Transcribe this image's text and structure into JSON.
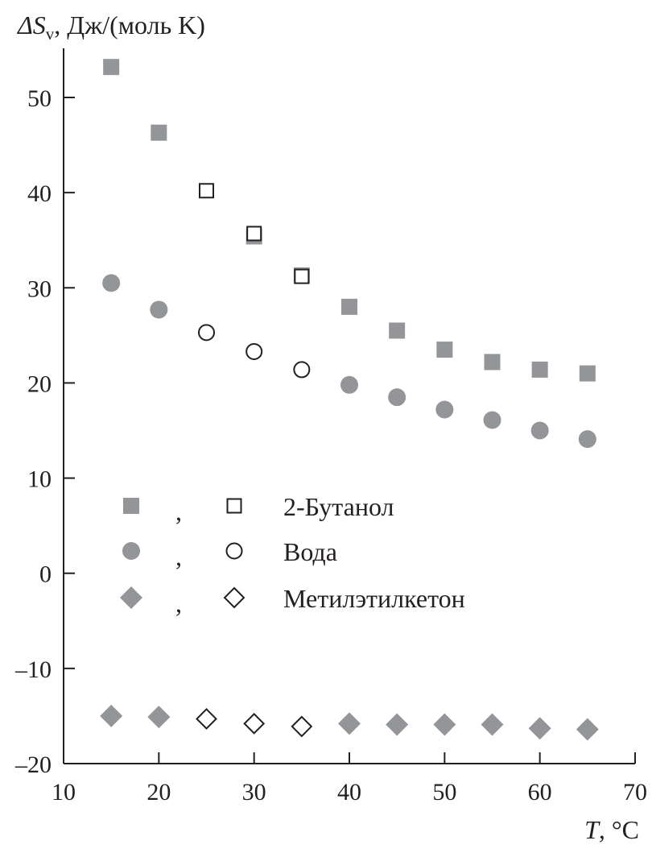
{
  "chart_data": {
    "type": "scatter",
    "ylabel_symbol": "ΔS",
    "ylabel_subscript": "v",
    "ylabel_unit": ", Дж/(моль K)",
    "xlabel_symbol": "T",
    "xlabel_unit": ", °C",
    "xlim": [
      10,
      70
    ],
    "ylim": [
      -20,
      55
    ],
    "xticks": [
      10,
      20,
      30,
      40,
      50,
      60,
      70
    ],
    "yticks": [
      -20,
      -10,
      0,
      10,
      20,
      30,
      40,
      50
    ],
    "ytick_labels": [
      "–20",
      "–10",
      "0",
      "10",
      "20",
      "30",
      "40",
      "50"
    ],
    "legend_placement": "center-left",
    "colors": {
      "filled": "#939598",
      "open_stroke": "#231f20",
      "axis": "#231f20"
    },
    "legend_separator": ",",
    "series": [
      {
        "name": "2-Бутанол",
        "marker": "square",
        "filled": {
          "x": [
            15,
            20,
            40,
            45,
            50,
            55,
            60,
            65
          ],
          "y": [
            53.2,
            46.3,
            28.0,
            25.5,
            23.5,
            22.2,
            21.4,
            21.0
          ]
        },
        "open": {
          "x": [
            25,
            30,
            35
          ],
          "y": [
            40.2,
            35.7,
            31.2
          ]
        },
        "hidden_filled": {
          "x": [
            30,
            35
          ],
          "y": [
            35.4,
            31.3
          ]
        }
      },
      {
        "name": "Вода",
        "marker": "circle",
        "filled": {
          "x": [
            15,
            20,
            40,
            45,
            50,
            55,
            60,
            65
          ],
          "y": [
            30.5,
            27.7,
            19.8,
            18.5,
            17.2,
            16.1,
            15.0,
            14.1
          ]
        },
        "open": {
          "x": [
            25,
            30,
            35
          ],
          "y": [
            25.3,
            23.3,
            21.4
          ]
        },
        "hidden_filled": {
          "x": [],
          "y": []
        }
      },
      {
        "name": "Метилэтилкетон",
        "marker": "diamond",
        "filled": {
          "x": [
            15,
            20,
            40,
            45,
            50,
            55,
            60,
            65
          ],
          "y": [
            -15.0,
            -15.1,
            -15.8,
            -15.9,
            -15.9,
            -15.9,
            -16.3,
            -16.4
          ]
        },
        "open": {
          "x": [
            25,
            30,
            35
          ],
          "y": [
            -15.3,
            -15.8,
            -16.1
          ]
        },
        "hidden_filled": {
          "x": [],
          "y": []
        }
      }
    ]
  }
}
